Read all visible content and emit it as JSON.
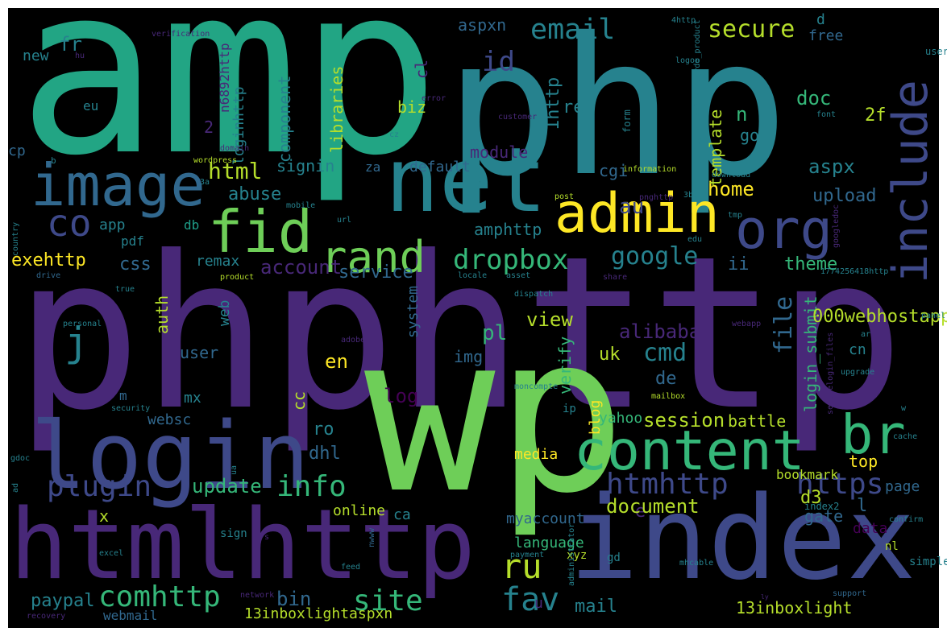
{
  "words": [
    "amp",
    "php",
    "phphttp",
    "wp",
    "htmlhttp",
    "index",
    "login",
    "net",
    "image",
    "fid",
    "admin",
    "org",
    "include",
    "content",
    "br",
    "rand",
    "co",
    "j",
    "ru",
    "fav",
    "site",
    "comhttp",
    "paypal",
    "info",
    "plugin",
    "update",
    "htmhttp",
    "https",
    "dropbox",
    "google",
    "cmd",
    "file",
    "email",
    "secure",
    "id",
    "html",
    "abuse",
    "account",
    "service",
    "css",
    "exehttp",
    "app",
    "db",
    "pdf",
    "remax",
    "au",
    "aspx",
    "home",
    "upload",
    "theme",
    "ii",
    "doc",
    "n",
    "go",
    "2f",
    "template",
    "ref",
    "1http",
    "cgi",
    "module",
    "default",
    "amphttp",
    "aspxn",
    "biz",
    "cl",
    "libraries",
    "component",
    "loginhttp",
    "2",
    "n6892http",
    "fr",
    "new",
    "eu",
    "cp",
    "signin",
    "za",
    "pl",
    "alibaba",
    "view",
    "verify",
    "uk",
    "de",
    "img",
    "en",
    "auth",
    "user",
    "web",
    "system",
    "cc",
    "login_submit",
    "000webhostapp",
    "cn",
    "page",
    "log",
    "m",
    "mx",
    "websc",
    "session",
    "battle",
    "yahoo",
    "blog",
    "ro",
    "dhl",
    "media",
    "top",
    "bookmark",
    "d3",
    "e",
    "document",
    "l",
    "gate",
    "data",
    "x",
    "online",
    "ca",
    "myaccount",
    "language",
    "bin",
    "u",
    "mail",
    "13inboxlight",
    "13inboxlightaspxn",
    "webmail",
    "verification",
    "hu",
    "4http",
    "logon",
    "d",
    "free",
    "userid",
    "b",
    "wordpress",
    "3a",
    "mobile",
    "url",
    "country",
    "drive",
    "product",
    "true",
    "locale",
    "asset",
    "dispatch",
    "share",
    "1774256418http",
    "personal",
    "adobe",
    "customer",
    "error",
    "cz",
    "form",
    "information",
    "download",
    "font",
    "post",
    "pnghttp",
    "3buf",
    "tmp",
    "edu",
    "googledoc",
    "webapp",
    "panel",
    "ar",
    "upgrade",
    "mailbox",
    "moncompte",
    "ip",
    "w",
    "cache",
    "confirm",
    "support",
    "simplepie",
    "nl",
    "gd",
    "xyz",
    "feed",
    "excel",
    "sign",
    "s",
    "recovery",
    "network",
    "gdoc",
    "ua",
    "security",
    "ad",
    "jenfug_vjoxx0qwhtogyde_product",
    "securelogin_files",
    "administrator",
    "payment",
    "mhcable",
    "index2",
    "nwww",
    "domain",
    "ly"
  ]
}
